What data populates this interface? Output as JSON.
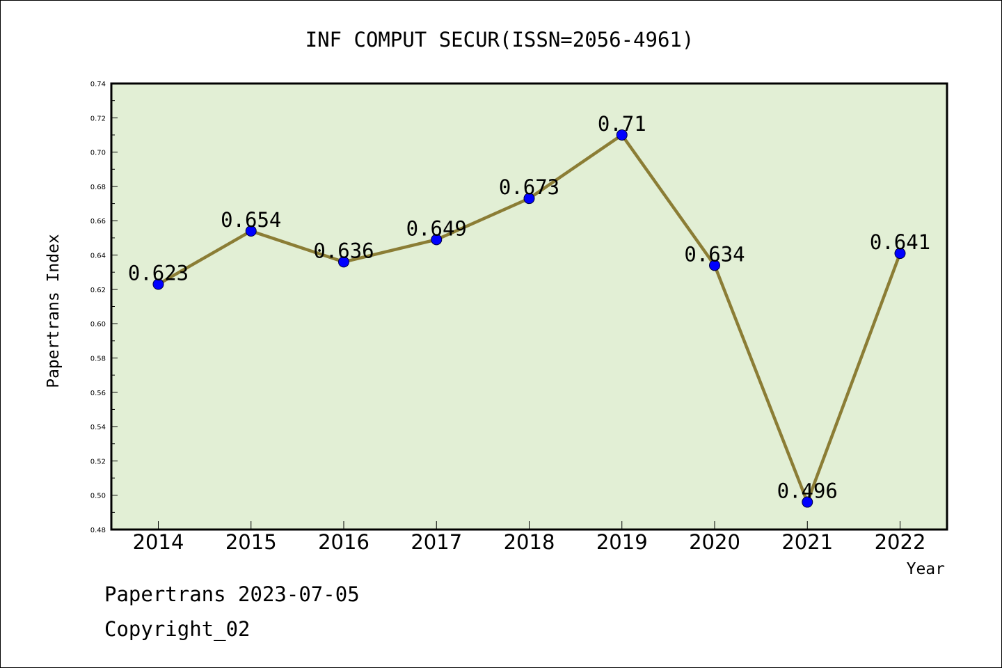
{
  "chart_data": {
    "type": "line",
    "title": "INF COMPUT SECUR(ISSN=2056-4961)",
    "xlabel": "Year",
    "ylabel": "Papertrans Index",
    "categories": [
      "2014",
      "2015",
      "2016",
      "2017",
      "2018",
      "2019",
      "2020",
      "2021",
      "2022"
    ],
    "series": [
      {
        "values": [
          0.623,
          0.654,
          0.636,
          0.649,
          0.673,
          0.71,
          0.634,
          0.496,
          0.641
        ],
        "labels": [
          "0.623",
          "0.654",
          "0.636",
          "0.649",
          "0.673",
          "0.71",
          "0.634",
          "0.496",
          "0.641"
        ]
      }
    ],
    "ylim": [
      0.48,
      0.74
    ],
    "yticks": [
      "0.48",
      "0.50",
      "0.52",
      "0.54",
      "0.56",
      "0.58",
      "0.60",
      "0.62",
      "0.64",
      "0.66",
      "0.68",
      "0.70",
      "0.72",
      "0.74"
    ],
    "grid": false,
    "legend": "none",
    "colors": {
      "plot_background": "#e2efd5",
      "line": "#8b7d35",
      "marker": "#0000ff",
      "axis": "#000000"
    }
  },
  "footer": {
    "date_line": "Papertrans 2023-07-05",
    "copyright": "Copyright_02"
  }
}
